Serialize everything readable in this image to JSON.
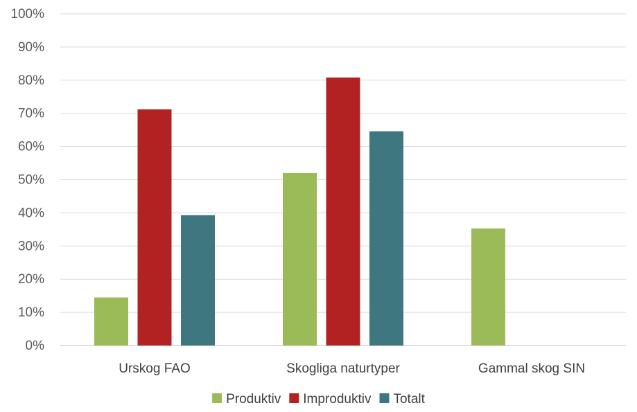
{
  "chart_data": {
    "type": "bar",
    "title": "",
    "xlabel": "",
    "ylabel": "",
    "categories": [
      "Urskog FAO",
      "Skogliga naturtyper",
      "Gammal skog SIN"
    ],
    "series": [
      {
        "name": "Produktiv",
        "values": [
          0.145,
          0.52,
          0.353
        ],
        "color": "#9BBB59"
      },
      {
        "name": "Improduktiv",
        "values": [
          0.712,
          0.808,
          null
        ],
        "color": "#B22222"
      },
      {
        "name": "Totalt",
        "values": [
          0.393,
          0.646,
          null
        ],
        "color": "#3E7780"
      }
    ],
    "ylim": [
      0,
      1
    ],
    "yticks": [
      "0%",
      "10%",
      "20%",
      "30%",
      "40%",
      "50%",
      "60%",
      "70%",
      "80%",
      "90%",
      "100%"
    ],
    "grid": true,
    "legend": "bottom"
  }
}
